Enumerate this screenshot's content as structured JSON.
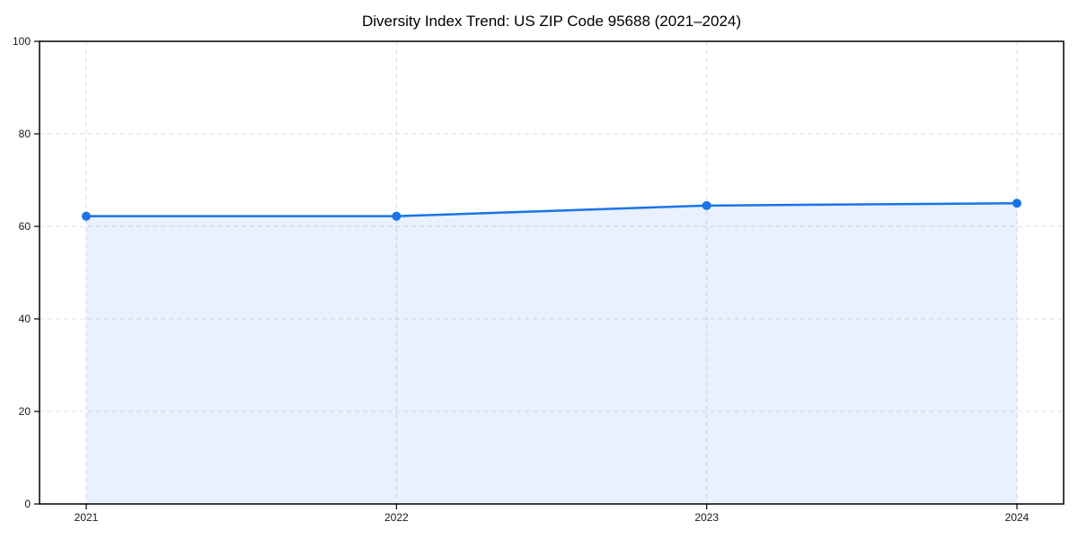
{
  "chart_data": {
    "type": "line",
    "title": "Diversity Index Trend: US ZIP Code 95688 (2021–2024)",
    "series_name": "Diversity Index",
    "categories": [
      "2021",
      "2022",
      "2023",
      "2024"
    ],
    "x": [
      2021,
      2022,
      2023,
      2024
    ],
    "values": [
      62.2,
      62.2,
      64.5,
      65.0
    ],
    "xlabel": "",
    "ylabel": "",
    "ylim": [
      0,
      100
    ],
    "yticks": [
      0,
      20,
      40,
      60,
      80,
      100
    ],
    "grid": "dashed-both-axes",
    "legend_position": "none",
    "area_fill": true,
    "marker": "circle",
    "colors": {
      "line": "#1a73e8",
      "marker": "#1a73e8",
      "area_fill": "rgba(26,115,232,0.10)",
      "gridline": "#dcdcdc",
      "axis_frame": "#000000",
      "tick_label": "#1a1a1a",
      "title": "#000000",
      "background": "#ffffff"
    }
  }
}
